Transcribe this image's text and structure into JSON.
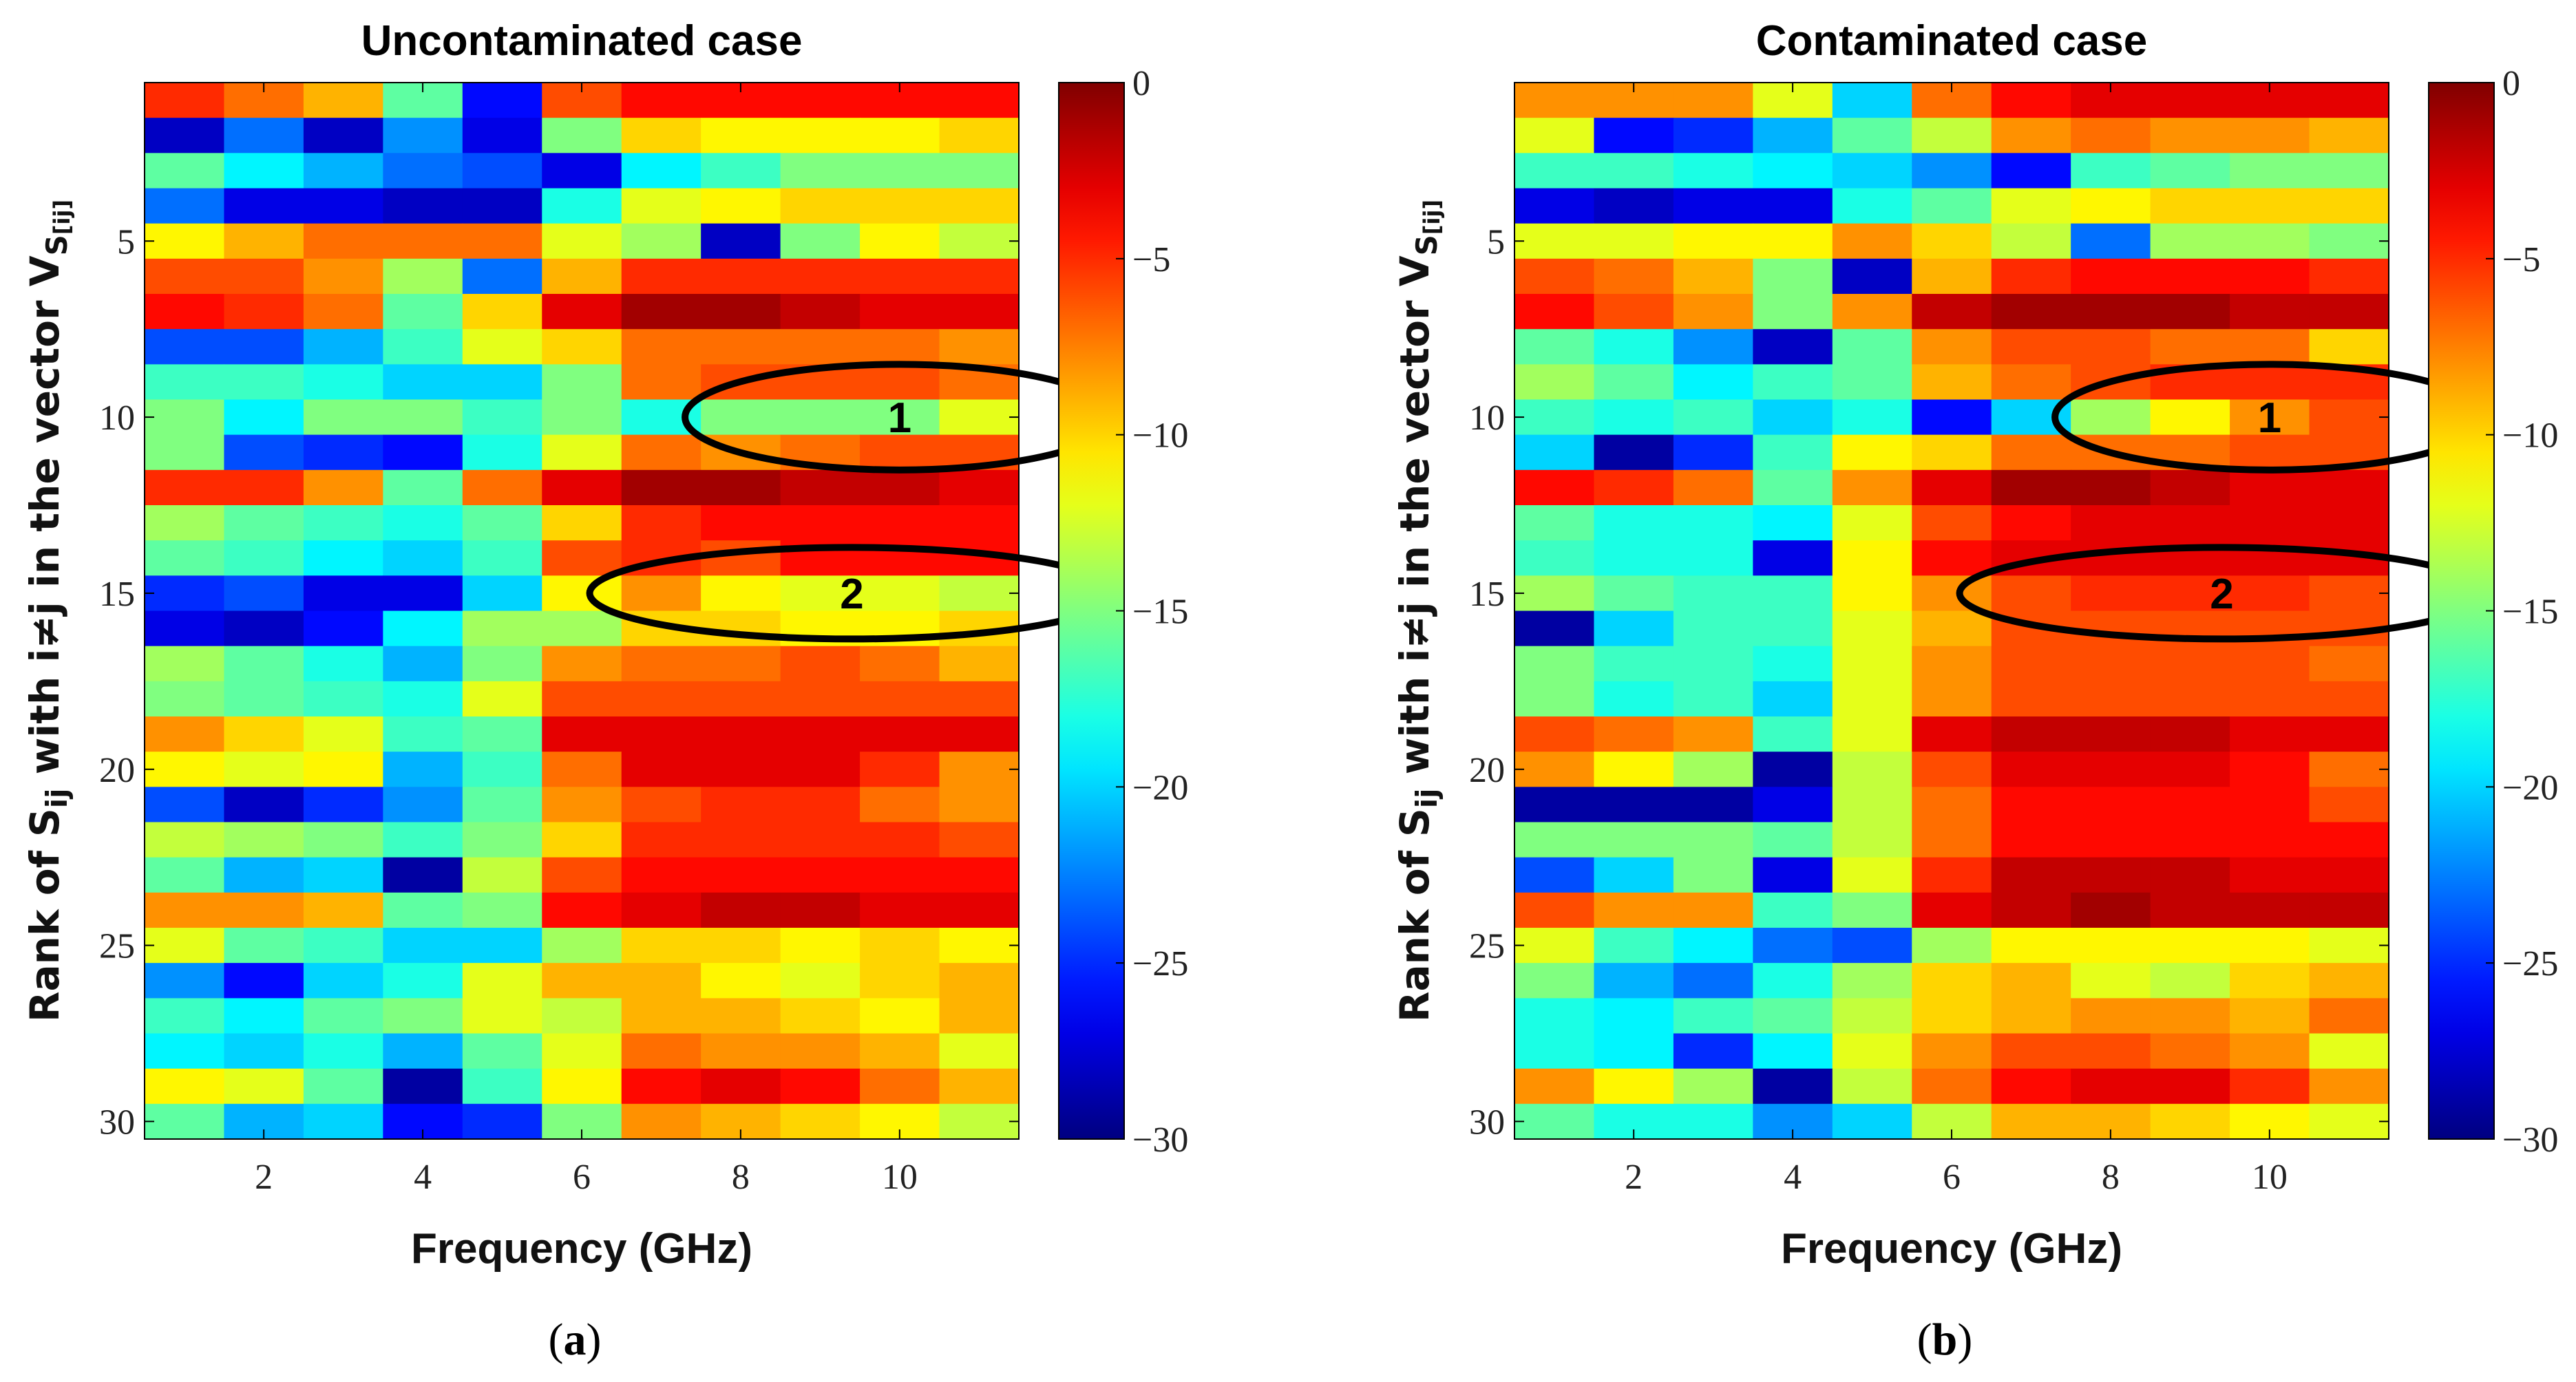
{
  "chart_data": [
    {
      "panel": "a",
      "type": "heatmap",
      "title": "Uncontaminated case",
      "xlabel": "Frequency (GHz)",
      "ylabel": "Rank of S_ij with i≠j in the vector V_S[ij]",
      "ylabel_parts": {
        "prefix": "Rank of S",
        "sub": "ij",
        "middle": " with i≠j in the vector V",
        "sub2": "S",
        "sub3": "[ij]"
      },
      "caption_open": "(",
      "caption_letter": "a",
      "caption_close": ")",
      "x": [
        1,
        2,
        3,
        4,
        5,
        6,
        7,
        8,
        9,
        10,
        11
      ],
      "x_ticks": [
        2,
        4,
        6,
        8,
        10
      ],
      "y_ticks": [
        5,
        10,
        15,
        20,
        25,
        30
      ],
      "xlim": [
        0.5,
        11.5
      ],
      "ylim": [
        0.5,
        30.5
      ],
      "colorbar": {
        "range": [
          -30,
          0
        ],
        "ticks": [
          "0",
          "-5",
          "-10",
          "-15",
          "-20",
          "-25",
          "-30"
        ],
        "colormap": "jet"
      },
      "annotations": [
        {
          "label": "1",
          "x_center": 10,
          "y_center": 10,
          "x_radius": 2.7,
          "y_radius": 1.5
        },
        {
          "label": "2",
          "x_center": 9.4,
          "y_center": 15,
          "x_radius": 3.3,
          "y_radius": 1.3
        }
      ],
      "values": [
        [
          -5,
          -7,
          -9,
          -16,
          -26,
          -6,
          -4,
          -4,
          -4,
          -4,
          -4
        ],
        [
          -28,
          -23,
          -28,
          -22,
          -27,
          -15,
          -10,
          -11,
          -11,
          -11,
          -10
        ],
        [
          -16,
          -19,
          -21,
          -23,
          -24,
          -27,
          -19,
          -17,
          -15,
          -15,
          -15
        ],
        [
          -23,
          -27,
          -27,
          -28,
          -28,
          -18,
          -12,
          -11,
          -10,
          -10,
          -10
        ],
        [
          -11,
          -9,
          -7,
          -7,
          -7,
          -12,
          -14,
          -28,
          -15,
          -11,
          -13
        ],
        [
          -6,
          -6,
          -8,
          -14,
          -23,
          -9,
          -5,
          -5,
          -5,
          -5,
          -5
        ],
        [
          -4,
          -5,
          -7,
          -16,
          -10,
          -3,
          -1,
          -1,
          -2,
          -3,
          -3
        ],
        [
          -24,
          -24,
          -21,
          -17,
          -12,
          -10,
          -7,
          -7,
          -7,
          -7,
          -8
        ],
        [
          -17,
          -17,
          -18,
          -20,
          -20,
          -15,
          -7,
          -6,
          -6,
          -6,
          -7
        ],
        [
          -15,
          -19,
          -15,
          -15,
          -17,
          -15,
          -18,
          -15,
          -15,
          -15,
          -12
        ],
        [
          -15,
          -24,
          -25,
          -26,
          -18,
          -12,
          -7,
          -8,
          -7,
          -6,
          -6
        ],
        [
          -5,
          -5,
          -8,
          -16,
          -7,
          -3,
          -1,
          -1,
          -2,
          -2,
          -3
        ],
        [
          -14,
          -16,
          -17,
          -18,
          -16,
          -10,
          -5,
          -4,
          -4,
          -4,
          -4
        ],
        [
          -16,
          -17,
          -19,
          -20,
          -17,
          -6,
          -5,
          -6,
          -4,
          -4,
          -4
        ],
        [
          -25,
          -24,
          -27,
          -27,
          -20,
          -11,
          -8,
          -11,
          -12,
          -12,
          -13
        ],
        [
          -27,
          -28,
          -26,
          -19,
          -14,
          -14,
          -10,
          -10,
          -11,
          -11,
          -10
        ],
        [
          -14,
          -16,
          -18,
          -21,
          -15,
          -8,
          -7,
          -7,
          -6,
          -7,
          -9
        ],
        [
          -15,
          -16,
          -17,
          -18,
          -12,
          -6,
          -6,
          -6,
          -6,
          -6,
          -6
        ],
        [
          -8,
          -10,
          -12,
          -17,
          -16,
          -3,
          -3,
          -3,
          -3,
          -3,
          -3
        ],
        [
          -11,
          -12,
          -11,
          -21,
          -17,
          -7,
          -3,
          -3,
          -3,
          -5,
          -8
        ],
        [
          -24,
          -28,
          -25,
          -22,
          -16,
          -8,
          -6,
          -5,
          -5,
          -7,
          -8
        ],
        [
          -13,
          -14,
          -15,
          -17,
          -15,
          -10,
          -5,
          -5,
          -5,
          -5,
          -6
        ],
        [
          -16,
          -21,
          -20,
          -29,
          -13,
          -6,
          -4,
          -4,
          -4,
          -4,
          -4
        ],
        [
          -8,
          -8,
          -9,
          -16,
          -15,
          -4,
          -3,
          -2,
          -2,
          -3,
          -3
        ],
        [
          -12,
          -16,
          -17,
          -20,
          -20,
          -14,
          -10,
          -10,
          -11,
          -10,
          -11
        ],
        [
          -22,
          -26,
          -20,
          -18,
          -12,
          -9,
          -9,
          -11,
          -12,
          -10,
          -9
        ],
        [
          -17,
          -19,
          -16,
          -15,
          -12,
          -13,
          -9,
          -9,
          -10,
          -11,
          -9
        ],
        [
          -19,
          -20,
          -18,
          -21,
          -16,
          -12,
          -7,
          -8,
          -8,
          -9,
          -12
        ],
        [
          -11,
          -12,
          -16,
          -29,
          -17,
          -11,
          -4,
          -3,
          -4,
          -7,
          -9
        ],
        [
          -16,
          -21,
          -20,
          -26,
          -25,
          -15,
          -8,
          -9,
          -10,
          -11,
          -13
        ]
      ]
    },
    {
      "panel": "b",
      "type": "heatmap",
      "title": "Contaminated case",
      "xlabel": "Frequency (GHz)",
      "ylabel": "Rank of S_ij with i≠j in the vector V_S[ij]",
      "ylabel_parts": {
        "prefix": "Rank of S",
        "sub": "ij",
        "middle": " with i≠j in the vector V",
        "sub2": "S",
        "sub3": "[ij]"
      },
      "caption_open": "(",
      "caption_letter": "b",
      "caption_close": ")",
      "x": [
        1,
        2,
        3,
        4,
        5,
        6,
        7,
        8,
        9,
        10,
        11
      ],
      "x_ticks": [
        2,
        4,
        6,
        8,
        10
      ],
      "y_ticks": [
        5,
        10,
        15,
        20,
        25,
        30
      ],
      "xlim": [
        0.5,
        11.5
      ],
      "ylim": [
        0.5,
        30.5
      ],
      "colorbar": {
        "range": [
          -30,
          0
        ],
        "ticks": [
          "0",
          "-5",
          "-10",
          "-15",
          "-20",
          "-25",
          "-30"
        ],
        "colormap": "jet"
      },
      "annotations": [
        {
          "label": "1",
          "x_center": 10,
          "y_center": 10,
          "x_radius": 2.7,
          "y_radius": 1.5
        },
        {
          "label": "2",
          "x_center": 9.4,
          "y_center": 15,
          "x_radius": 3.3,
          "y_radius": 1.3
        }
      ],
      "values": [
        [
          -8,
          -8,
          -8,
          -12,
          -20,
          -7,
          -4,
          -3,
          -3,
          -3,
          -3
        ],
        [
          -12,
          -26,
          -25,
          -21,
          -16,
          -13,
          -8,
          -7,
          -8,
          -8,
          -9
        ],
        [
          -17,
          -17,
          -18,
          -19,
          -20,
          -22,
          -26,
          -17,
          -16,
          -15,
          -15
        ],
        [
          -27,
          -28,
          -27,
          -27,
          -18,
          -16,
          -12,
          -11,
          -10,
          -10,
          -10
        ],
        [
          -12,
          -12,
          -11,
          -11,
          -8,
          -10,
          -13,
          -23,
          -14,
          -14,
          -15
        ],
        [
          -6,
          -7,
          -9,
          -15,
          -28,
          -9,
          -5,
          -4,
          -4,
          -4,
          -5
        ],
        [
          -4,
          -6,
          -8,
          -15,
          -8,
          -2,
          -1,
          -1,
          -1,
          -2,
          -2
        ],
        [
          -16,
          -18,
          -22,
          -28,
          -16,
          -8,
          -6,
          -6,
          -7,
          -7,
          -10
        ],
        [
          -14,
          -16,
          -19,
          -17,
          -16,
          -9,
          -7,
          -6,
          -5,
          -5,
          -5
        ],
        [
          -17,
          -18,
          -17,
          -20,
          -18,
          -26,
          -20,
          -14,
          -11,
          -8,
          -6
        ],
        [
          -20,
          -29,
          -25,
          -17,
          -11,
          -10,
          -7,
          -7,
          -7,
          -6,
          -6
        ],
        [
          -4,
          -5,
          -7,
          -16,
          -8,
          -3,
          -1,
          -1,
          -2,
          -3,
          -3
        ],
        [
          -16,
          -18,
          -18,
          -19,
          -12,
          -6,
          -4,
          -3,
          -3,
          -3,
          -3
        ],
        [
          -17,
          -18,
          -18,
          -27,
          -11,
          -4,
          -3,
          -3,
          -3,
          -3,
          -3
        ],
        [
          -14,
          -16,
          -17,
          -17,
          -11,
          -8,
          -6,
          -5,
          -5,
          -5,
          -6
        ],
        [
          -29,
          -20,
          -17,
          -17,
          -12,
          -9,
          -6,
          -6,
          -6,
          -6,
          -6
        ],
        [
          -15,
          -17,
          -17,
          -18,
          -12,
          -8,
          -6,
          -6,
          -6,
          -6,
          -7
        ],
        [
          -15,
          -18,
          -17,
          -20,
          -12,
          -8,
          -6,
          -6,
          -6,
          -6,
          -6
        ],
        [
          -6,
          -7,
          -8,
          -17,
          -12,
          -3,
          -2,
          -2,
          -2,
          -3,
          -3
        ],
        [
          -8,
          -11,
          -14,
          -29,
          -13,
          -6,
          -3,
          -3,
          -3,
          -4,
          -7
        ],
        [
          -29,
          -29,
          -29,
          -27,
          -13,
          -7,
          -4,
          -4,
          -4,
          -4,
          -6
        ],
        [
          -15,
          -15,
          -15,
          -16,
          -13,
          -7,
          -4,
          -4,
          -4,
          -4,
          -4
        ],
        [
          -24,
          -20,
          -15,
          -27,
          -12,
          -5,
          -2,
          -2,
          -2,
          -3,
          -3
        ],
        [
          -6,
          -8,
          -8,
          -17,
          -15,
          -3,
          -2,
          -1,
          -2,
          -2,
          -2
        ],
        [
          -12,
          -17,
          -19,
          -23,
          -24,
          -14,
          -11,
          -11,
          -11,
          -11,
          -12
        ],
        [
          -15,
          -21,
          -23,
          -18,
          -14,
          -10,
          -9,
          -12,
          -13,
          -10,
          -9
        ],
        [
          -18,
          -19,
          -17,
          -16,
          -13,
          -10,
          -9,
          -8,
          -8,
          -9,
          -7
        ],
        [
          -18,
          -19,
          -25,
          -19,
          -12,
          -8,
          -6,
          -6,
          -7,
          -8,
          -12
        ],
        [
          -8,
          -11,
          -14,
          -29,
          -13,
          -7,
          -4,
          -3,
          -3,
          -5,
          -8
        ],
        [
          -16,
          -18,
          -18,
          -22,
          -20,
          -13,
          -9,
          -9,
          -10,
          -11,
          -12
        ]
      ]
    }
  ]
}
